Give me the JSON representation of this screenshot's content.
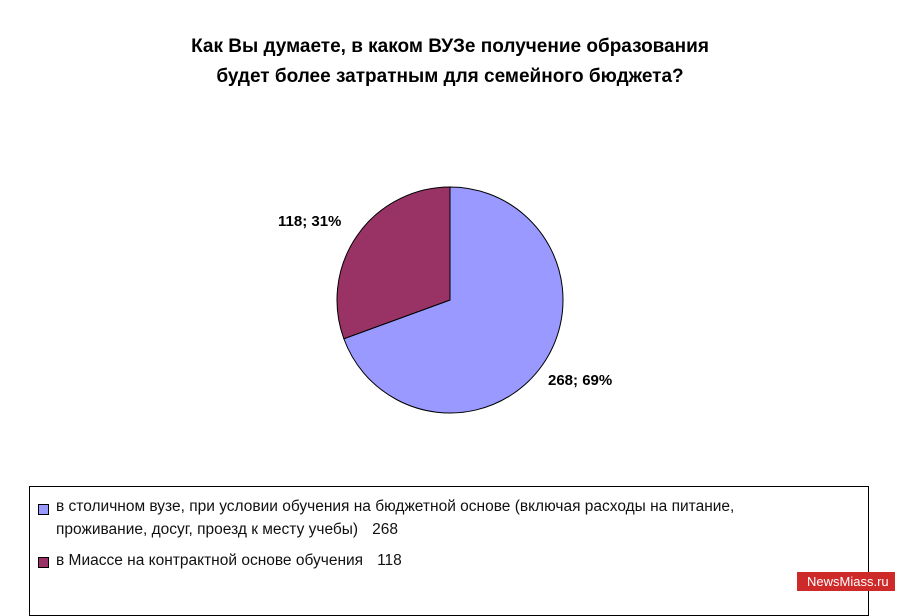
{
  "chart_data": {
    "type": "pie",
    "title_lines": [
      "Как Вы думаете, в каком ВУЗе получение образования",
      "будет более затратным для семейного бюджета?"
    ],
    "slices": [
      {
        "label_lines": [
          "в столичном вузе, при условии обучения на бюджетной основе (включая расходы на питание,",
          "проживание, досуг, проезд к месту учебы)"
        ],
        "value": 268,
        "percent": 69,
        "data_label": "268; 69%",
        "color": "#9999FF"
      },
      {
        "label_lines": [
          "в Миассе на контрактной основе обучения"
        ],
        "value": 118,
        "percent": 31,
        "data_label": "118; 31%",
        "color": "#993366"
      }
    ],
    "legend_position": "bottom"
  },
  "watermark": "NewsMiass.ru"
}
